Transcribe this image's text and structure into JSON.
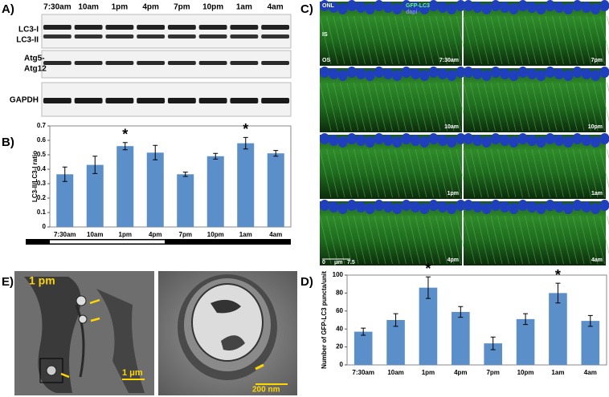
{
  "panel_labels": [
    "A)",
    "B)",
    "C)",
    "D)",
    "E)"
  ],
  "blot": {
    "lanes": [
      "7:30am",
      "10am",
      "1pm",
      "4pm",
      "7pm",
      "10pm",
      "1am",
      "4am"
    ],
    "rows": [
      "LC3-I",
      "LC3-II",
      "Atg5-",
      "Atg12",
      "GAPDH"
    ]
  },
  "microscopy": {
    "legend": [
      "GFP-LC3",
      "dapi"
    ],
    "layers": [
      "ONL",
      "IS",
      "OS"
    ],
    "times": [
      "7:30am",
      "7pm",
      "10am",
      "10pm",
      "1pm",
      "1am",
      "4pm",
      "4am"
    ],
    "scale": [
      "0",
      "μm",
      "7.5"
    ]
  },
  "em": {
    "time": "1 pm",
    "scales": [
      "1 μm",
      "200 nm"
    ]
  },
  "chart_data": [
    {
      "type": "bar",
      "ylabel": "LC3-II/LC3-I ratio",
      "categories": [
        "7:30am",
        "10am",
        "1pm",
        "4pm",
        "7pm",
        "10pm",
        "1am",
        "4am"
      ],
      "values": [
        0.365,
        0.43,
        0.56,
        0.515,
        0.365,
        0.49,
        0.58,
        0.51
      ],
      "errors": [
        0.05,
        0.06,
        0.025,
        0.05,
        0.015,
        0.02,
        0.04,
        0.02
      ],
      "color": "#5b8fc9",
      "ylim": [
        0,
        0.7
      ],
      "yticks": [
        0,
        0.1,
        0.2,
        0.3,
        0.4,
        0.5,
        0.6,
        0.7
      ],
      "annotations": [
        {
          "text": "*",
          "x": "1pm"
        },
        {
          "text": "*",
          "x": "1am"
        }
      ]
    },
    {
      "type": "bar",
      "ylabel": "Number of GFP-LC3 puncta/unit",
      "categories": [
        "7:30am",
        "10am",
        "1pm",
        "4pm",
        "7pm",
        "10pm",
        "1am",
        "4am"
      ],
      "values": [
        37,
        50,
        86,
        59,
        24,
        51,
        80,
        49
      ],
      "errors": [
        4,
        7,
        12,
        6,
        7,
        6,
        11,
        6
      ],
      "color": "#5b8fc9",
      "ylim": [
        0,
        100
      ],
      "yticks": [
        0,
        20,
        40,
        60,
        80,
        100
      ],
      "annotations": [
        {
          "text": "*",
          "x": "1pm"
        },
        {
          "text": "*",
          "x": "1am"
        }
      ]
    }
  ]
}
